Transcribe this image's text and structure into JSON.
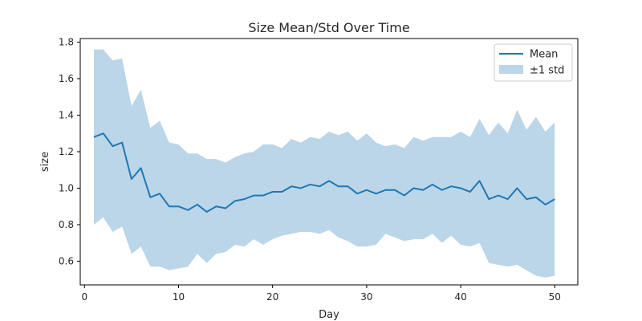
{
  "chart_data": {
    "type": "line",
    "title": "Size Mean/Std Over Time",
    "xlabel": "Day",
    "ylabel": "size",
    "xlim": [
      -0.45,
      52.45
    ],
    "ylim": [
      0.47,
      1.82
    ],
    "xticks": [
      0,
      10,
      20,
      30,
      40,
      50
    ],
    "yticks": [
      0.6,
      0.8,
      1.0,
      1.2,
      1.4,
      1.6,
      1.8
    ],
    "xtick_labels": [
      "0",
      "10",
      "20",
      "30",
      "40",
      "50"
    ],
    "ytick_labels": [
      "0.6",
      "0.8",
      "1.0",
      "1.2",
      "1.4",
      "1.6",
      "1.8"
    ],
    "grid": false,
    "legend": {
      "position": "top-right",
      "entries": [
        "Mean",
        "±1 std"
      ]
    },
    "colors": {
      "line": "#1f77b4",
      "band": "#1f77b4",
      "band_opacity": 0.3
    },
    "x": [
      1,
      2,
      3,
      4,
      5,
      6,
      7,
      8,
      9,
      10,
      11,
      12,
      13,
      14,
      15,
      16,
      17,
      18,
      19,
      20,
      21,
      22,
      23,
      24,
      25,
      26,
      27,
      28,
      29,
      30,
      31,
      32,
      33,
      34,
      35,
      36,
      37,
      38,
      39,
      40,
      41,
      42,
      43,
      44,
      45,
      46,
      47,
      48,
      49,
      50
    ],
    "series": [
      {
        "name": "Mean",
        "values": [
          1.28,
          1.3,
          1.23,
          1.25,
          1.05,
          1.11,
          0.95,
          0.97,
          0.9,
          0.9,
          0.88,
          0.91,
          0.87,
          0.9,
          0.89,
          0.93,
          0.94,
          0.96,
          0.96,
          0.98,
          0.98,
          1.01,
          1.0,
          1.02,
          1.01,
          1.04,
          1.01,
          1.01,
          0.97,
          0.99,
          0.97,
          0.99,
          0.99,
          0.96,
          1.0,
          0.99,
          1.02,
          0.99,
          1.01,
          1.0,
          0.98,
          1.04,
          0.94,
          0.96,
          0.94,
          1.0,
          0.94,
          0.95,
          0.91,
          0.94
        ]
      },
      {
        "name": "±1 std",
        "upper": [
          1.76,
          1.76,
          1.7,
          1.71,
          1.45,
          1.54,
          1.33,
          1.37,
          1.25,
          1.24,
          1.19,
          1.19,
          1.16,
          1.16,
          1.14,
          1.17,
          1.19,
          1.2,
          1.24,
          1.24,
          1.22,
          1.27,
          1.25,
          1.28,
          1.27,
          1.31,
          1.29,
          1.31,
          1.26,
          1.3,
          1.25,
          1.23,
          1.24,
          1.22,
          1.28,
          1.26,
          1.28,
          1.28,
          1.28,
          1.31,
          1.28,
          1.38,
          1.29,
          1.36,
          1.3,
          1.43,
          1.32,
          1.39,
          1.31,
          1.36
        ],
        "lower": [
          0.8,
          0.84,
          0.76,
          0.79,
          0.64,
          0.68,
          0.57,
          0.57,
          0.55,
          0.56,
          0.57,
          0.64,
          0.59,
          0.64,
          0.65,
          0.69,
          0.68,
          0.72,
          0.69,
          0.72,
          0.74,
          0.75,
          0.76,
          0.76,
          0.75,
          0.77,
          0.73,
          0.71,
          0.68,
          0.68,
          0.69,
          0.75,
          0.73,
          0.71,
          0.72,
          0.72,
          0.75,
          0.7,
          0.74,
          0.69,
          0.68,
          0.7,
          0.59,
          0.58,
          0.57,
          0.58,
          0.55,
          0.52,
          0.51,
          0.52
        ]
      }
    ]
  }
}
